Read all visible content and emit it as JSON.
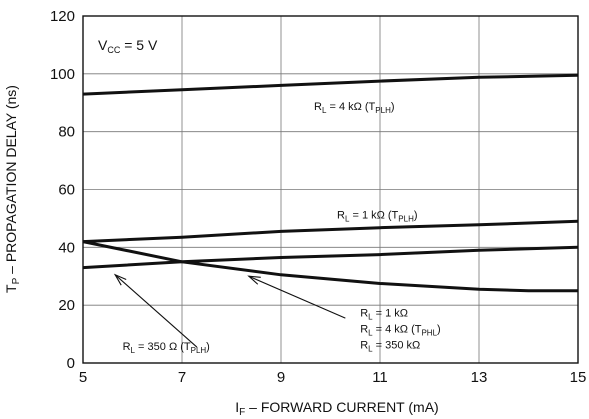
{
  "chart_data": {
    "type": "line",
    "title": "",
    "xlabel": {
      "main": "I",
      "sub": "F",
      "rest": " – FORWARD CURRENT (mA)"
    },
    "ylabel": {
      "main": "T",
      "sub": "P",
      "rest": " – PROPAGATION DELAY (ns)"
    },
    "xlim": [
      5,
      15
    ],
    "ylim": [
      0,
      120
    ],
    "x_ticks": [
      5,
      7,
      9,
      11,
      13,
      15
    ],
    "y_ticks": [
      0,
      20,
      40,
      60,
      80,
      100,
      120
    ],
    "grid": true,
    "condition": {
      "main": "V",
      "sub": "CC",
      "rest": " = 5 V"
    },
    "series": [
      {
        "x": [
          5,
          7,
          9,
          11,
          13,
          15
        ],
        "values": [
          93,
          94.5,
          96,
          97.5,
          98.8,
          99.5
        ]
      },
      {
        "x": [
          5,
          7,
          9,
          11,
          13,
          15
        ],
        "values": [
          42,
          43.5,
          45.5,
          46.8,
          47.8,
          49
        ]
      },
      {
        "x": [
          5,
          7,
          9,
          11,
          13,
          15
        ],
        "values": [
          33,
          35,
          36.5,
          37.5,
          39,
          40
        ]
      },
      {
        "x": [
          5,
          7,
          9,
          11,
          13,
          14,
          15
        ],
        "values": [
          42,
          35,
          30.5,
          27.5,
          25.5,
          25,
          25
        ]
      }
    ],
    "annotations": [
      {
        "id": "rl-4k-tplh",
        "parts": [
          {
            "t": "R"
          },
          {
            "t": "L",
            "sub": true
          },
          {
            "t": " = 4 kΩ  (T"
          },
          {
            "t": "PLH",
            "sub": true
          },
          {
            "t": ")"
          }
        ]
      },
      {
        "id": "rl-1k-tplh",
        "parts": [
          {
            "t": "R"
          },
          {
            "t": "L",
            "sub": true
          },
          {
            "t": " = 1 kΩ  (T"
          },
          {
            "t": "PLH",
            "sub": true
          },
          {
            "t": ")"
          }
        ]
      },
      {
        "id": "rl-350-tplh",
        "parts": [
          {
            "t": "R"
          },
          {
            "t": "L",
            "sub": true
          },
          {
            "t": " = 350 Ω (T"
          },
          {
            "t": "PLH",
            "sub": true
          },
          {
            "t": ")"
          }
        ]
      },
      {
        "id": "rl-1k",
        "parts": [
          {
            "t": "R"
          },
          {
            "t": "L",
            "sub": true
          },
          {
            "t": " = 1 kΩ"
          }
        ]
      },
      {
        "id": "rl-4k-tphl",
        "parts": [
          {
            "t": "R"
          },
          {
            "t": "L",
            "sub": true
          },
          {
            "t": " = 4 kΩ  (T"
          },
          {
            "t": "PHL",
            "sub": true
          },
          {
            "t": ")"
          }
        ]
      },
      {
        "id": "rl-350k",
        "parts": [
          {
            "t": "R"
          },
          {
            "t": "L",
            "sub": true
          },
          {
            "t": " = 350 kΩ"
          }
        ]
      }
    ]
  }
}
